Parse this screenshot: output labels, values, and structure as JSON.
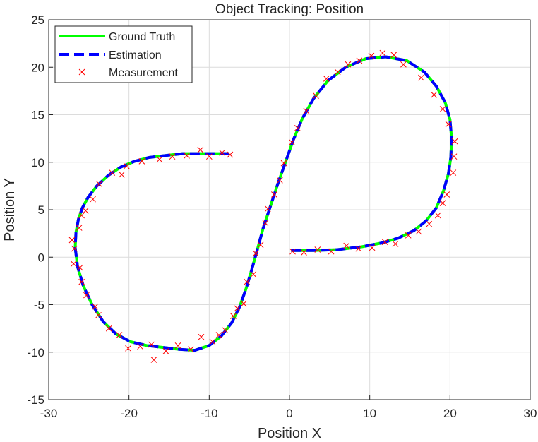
{
  "chart_data": {
    "type": "line",
    "title": "Object Tracking: Position",
    "xlabel": "Position X",
    "ylabel": "Position Y",
    "xlim": [
      -30,
      30
    ],
    "ylim": [
      -15,
      25
    ],
    "xticks": [
      -30,
      -20,
      -10,
      0,
      10,
      20,
      30
    ],
    "yticks": [
      -15,
      -10,
      -5,
      0,
      5,
      10,
      15,
      20,
      25
    ],
    "grid": true,
    "legend_position": "top-left",
    "series": [
      {
        "name": "Ground Truth",
        "style": "solid line",
        "color": "#00ff00",
        "x": [
          0.2,
          3.0,
          6.0,
          9.0,
          11.5,
          13.5,
          15.5,
          17.0,
          18.3,
          19.2,
          19.8,
          20.1,
          20.2,
          20.0,
          19.4,
          18.3,
          16.8,
          14.6,
          12.0,
          9.5,
          7.0,
          4.8,
          3.0,
          1.6,
          0.5,
          -0.5,
          -1.5,
          -2.4,
          -3.3,
          -4.0,
          -4.7,
          -5.4,
          -6.2,
          -7.2,
          -8.5,
          -10.0,
          -11.8,
          -13.8,
          -15.8,
          -17.8,
          -19.8,
          -21.6,
          -23.2,
          -24.6,
          -25.7,
          -26.4,
          -26.7,
          -26.6,
          -26.3,
          -25.8,
          -25.1,
          -24.0,
          -22.6,
          -21.0,
          -19.3,
          -17.5,
          -15.5,
          -13.3,
          -11.2,
          -9.3,
          -7.5
        ],
        "y": [
          0.7,
          0.7,
          0.8,
          1.1,
          1.5,
          2.0,
          2.8,
          3.8,
          5.2,
          7.0,
          8.8,
          10.5,
          12.5,
          14.5,
          16.3,
          18.0,
          19.5,
          20.7,
          21.1,
          20.9,
          20.0,
          18.6,
          16.7,
          14.6,
          12.4,
          10.0,
          7.6,
          5.3,
          3.0,
          0.8,
          -1.3,
          -3.3,
          -5.2,
          -6.9,
          -8.3,
          -9.3,
          -9.8,
          -9.7,
          -9.5,
          -9.3,
          -8.9,
          -8.1,
          -6.8,
          -5.0,
          -3.0,
          -1.0,
          1.0,
          2.6,
          4.0,
          5.2,
          6.3,
          7.5,
          8.6,
          9.5,
          10.1,
          10.5,
          10.7,
          10.9,
          10.9,
          10.9,
          10.9
        ]
      },
      {
        "name": "Estimation",
        "style": "dashed line",
        "color": "#0000ff",
        "x": [
          0.2,
          3.0,
          6.0,
          9.0,
          11.5,
          13.5,
          15.5,
          17.0,
          18.3,
          19.2,
          19.8,
          20.1,
          20.2,
          20.0,
          19.4,
          18.3,
          16.8,
          14.6,
          12.0,
          9.5,
          7.0,
          4.8,
          3.0,
          1.6,
          0.5,
          -0.5,
          -1.5,
          -2.4,
          -3.3,
          -4.0,
          -4.7,
          -5.4,
          -6.2,
          -7.2,
          -8.5,
          -10.0,
          -11.8,
          -13.8,
          -15.8,
          -17.8,
          -19.8,
          -21.6,
          -23.2,
          -24.6,
          -25.7,
          -26.4,
          -26.7,
          -26.6,
          -26.3,
          -25.8,
          -25.1,
          -24.0,
          -22.6,
          -21.0,
          -19.3,
          -17.5,
          -15.5,
          -13.3,
          -11.2,
          -9.3,
          -7.5
        ],
        "y": [
          0.7,
          0.7,
          0.8,
          1.1,
          1.5,
          2.0,
          2.8,
          3.8,
          5.2,
          7.0,
          8.8,
          10.5,
          12.5,
          14.5,
          16.3,
          18.0,
          19.5,
          20.7,
          21.1,
          20.9,
          20.0,
          18.6,
          16.7,
          14.6,
          12.4,
          10.0,
          7.6,
          5.3,
          3.0,
          0.8,
          -1.3,
          -3.3,
          -5.2,
          -6.9,
          -8.3,
          -9.3,
          -9.8,
          -9.7,
          -9.5,
          -9.3,
          -8.9,
          -8.1,
          -6.8,
          -5.0,
          -3.0,
          -1.0,
          1.0,
          2.6,
          4.0,
          5.2,
          6.3,
          7.5,
          8.6,
          9.5,
          10.1,
          10.5,
          10.7,
          10.9,
          10.9,
          10.9,
          10.9
        ]
      },
      {
        "name": "Measurement",
        "style": "x markers",
        "color": "#ff0000",
        "x": [
          0.4,
          1.8,
          3.5,
          5.2,
          7.1,
          8.6,
          10.3,
          11.9,
          13.2,
          14.8,
          16.1,
          17.4,
          18.5,
          19.1,
          19.6,
          20.4,
          20.5,
          20.6,
          19.8,
          19.1,
          18.0,
          16.4,
          14.2,
          13.0,
          11.6,
          10.2,
          8.7,
          7.3,
          6.0,
          4.6,
          3.3,
          2.1,
          1.0,
          0.3,
          -0.7,
          -1.2,
          -1.9,
          -2.7,
          -3.0,
          -3.6,
          -4.2,
          -4.5,
          -5.3,
          -5.7,
          -6.5,
          -7.0,
          -8.0,
          -8.8,
          -9.6,
          -11.0,
          -12.3,
          -13.9,
          -15.4,
          -16.9,
          -17.2,
          -18.6,
          -20.1,
          -21.2,
          -22.5,
          -23.8,
          -24.2,
          -25.3,
          -25.9,
          -26.1,
          -26.9,
          -26.8,
          -27.1,
          -26.2,
          -25.9,
          -25.4,
          -24.5,
          -23.7,
          -22.1,
          -20.9,
          -20.3,
          -18.4,
          -16.2,
          -14.6,
          -12.8,
          -11.1,
          -10.0,
          -8.4,
          -7.4
        ],
        "y": [
          0.6,
          0.5,
          0.8,
          0.6,
          1.2,
          0.9,
          1.0,
          1.6,
          1.4,
          2.3,
          2.7,
          3.5,
          4.4,
          5.7,
          6.6,
          8.9,
          10.6,
          12.2,
          14.0,
          15.6,
          17.1,
          18.9,
          20.3,
          21.3,
          21.5,
          21.2,
          20.7,
          20.3,
          19.5,
          18.8,
          17.0,
          15.4,
          13.6,
          12.1,
          9.9,
          8.1,
          6.6,
          5.1,
          3.6,
          1.3,
          0.4,
          -1.8,
          -2.6,
          -4.9,
          -5.4,
          -6.2,
          -7.7,
          -8.2,
          -8.9,
          -8.4,
          -9.7,
          -9.3,
          -9.9,
          -10.8,
          -9.2,
          -9.4,
          -9.6,
          -8.2,
          -7.5,
          -6.1,
          -5.2,
          -4.0,
          -2.6,
          -1.1,
          -0.7,
          0.9,
          1.8,
          3.1,
          4.4,
          4.9,
          6.1,
          7.7,
          8.9,
          8.7,
          9.6,
          10.1,
          10.3,
          10.6,
          10.7,
          11.3,
          10.6,
          11.0,
          10.8
        ]
      }
    ]
  },
  "colors": {
    "ground_truth": "#00ff00",
    "estimation": "#0000ff",
    "measurement": "#ff0000",
    "grid": "#dcdcdc",
    "axis": "#262626"
  }
}
